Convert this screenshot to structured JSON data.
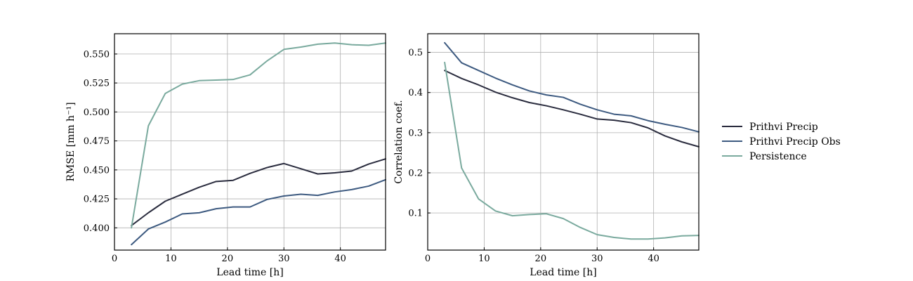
{
  "colors": {
    "Prithvi Precip": "#2a2c3e",
    "Prithvi Precip Obs": "#3d5a80",
    "Persistence": "#7aaa9e"
  },
  "legend": {
    "placement": "right-outside",
    "entries": [
      "Prithvi Precip",
      "Prithvi Precip Obs",
      "Persistence"
    ]
  },
  "chart_data": [
    {
      "type": "line",
      "xlabel": "Lead time [h]",
      "ylabel": "RMSE [mm h⁻¹]",
      "xlim": [
        0,
        48
      ],
      "ylim": [
        0.3808,
        0.5675
      ],
      "xticks": [
        0,
        10,
        20,
        30,
        40
      ],
      "yticks": [
        0.4,
        0.425,
        0.45,
        0.475,
        0.5,
        0.525,
        0.55
      ],
      "ytick_labels": [
        "0.400",
        "0.425",
        "0.450",
        "0.475",
        "0.500",
        "0.525",
        "0.550"
      ],
      "grid": true,
      "x": [
        3,
        6,
        9,
        12,
        15,
        18,
        21,
        24,
        27,
        30,
        33,
        36,
        39,
        42,
        45,
        48
      ],
      "series": [
        {
          "name": "Prithvi Precip",
          "values": [
            0.402,
            0.413,
            0.423,
            0.429,
            0.435,
            0.44,
            0.441,
            0.447,
            0.452,
            0.4555,
            0.451,
            0.4465,
            0.4475,
            0.449,
            0.455,
            0.4595
          ]
        },
        {
          "name": "Prithvi Precip Obs",
          "values": [
            0.3855,
            0.399,
            0.405,
            0.412,
            0.413,
            0.4165,
            0.418,
            0.418,
            0.4245,
            0.4275,
            0.429,
            0.428,
            0.431,
            0.433,
            0.436,
            0.4415
          ]
        },
        {
          "name": "Persistence",
          "values": [
            0.4,
            0.488,
            0.516,
            0.524,
            0.527,
            0.5275,
            0.528,
            0.532,
            0.544,
            0.554,
            0.556,
            0.5585,
            0.5595,
            0.558,
            0.5575,
            0.5595
          ]
        }
      ]
    },
    {
      "type": "line",
      "xlabel": "Lead time [h]",
      "ylabel": "Correlation coef.",
      "xlim": [
        0,
        48
      ],
      "ylim": [
        0.0075,
        0.5465
      ],
      "xticks": [
        0,
        10,
        20,
        30,
        40
      ],
      "yticks": [
        0.1,
        0.2,
        0.3,
        0.4,
        0.5
      ],
      "ytick_labels": [
        "0.1",
        "0.2",
        "0.3",
        "0.4",
        "0.5"
      ],
      "grid": true,
      "x": [
        3,
        6,
        9,
        12,
        15,
        18,
        21,
        24,
        27,
        30,
        33,
        36,
        39,
        42,
        45,
        48
      ],
      "series": [
        {
          "name": "Prithvi Precip",
          "values": [
            0.455,
            0.435,
            0.419,
            0.401,
            0.387,
            0.375,
            0.367,
            0.357,
            0.346,
            0.334,
            0.331,
            0.325,
            0.312,
            0.292,
            0.277,
            0.265
          ]
        },
        {
          "name": "Prithvi Precip Obs",
          "values": [
            0.524,
            0.474,
            0.455,
            0.436,
            0.419,
            0.404,
            0.394,
            0.388,
            0.371,
            0.357,
            0.346,
            0.342,
            0.33,
            0.321,
            0.313,
            0.302
          ]
        },
        {
          "name": "Persistence",
          "values": [
            0.475,
            0.212,
            0.135,
            0.105,
            0.093,
            0.096,
            0.098,
            0.086,
            0.064,
            0.046,
            0.039,
            0.035,
            0.035,
            0.038,
            0.043,
            0.044
          ]
        }
      ]
    }
  ]
}
